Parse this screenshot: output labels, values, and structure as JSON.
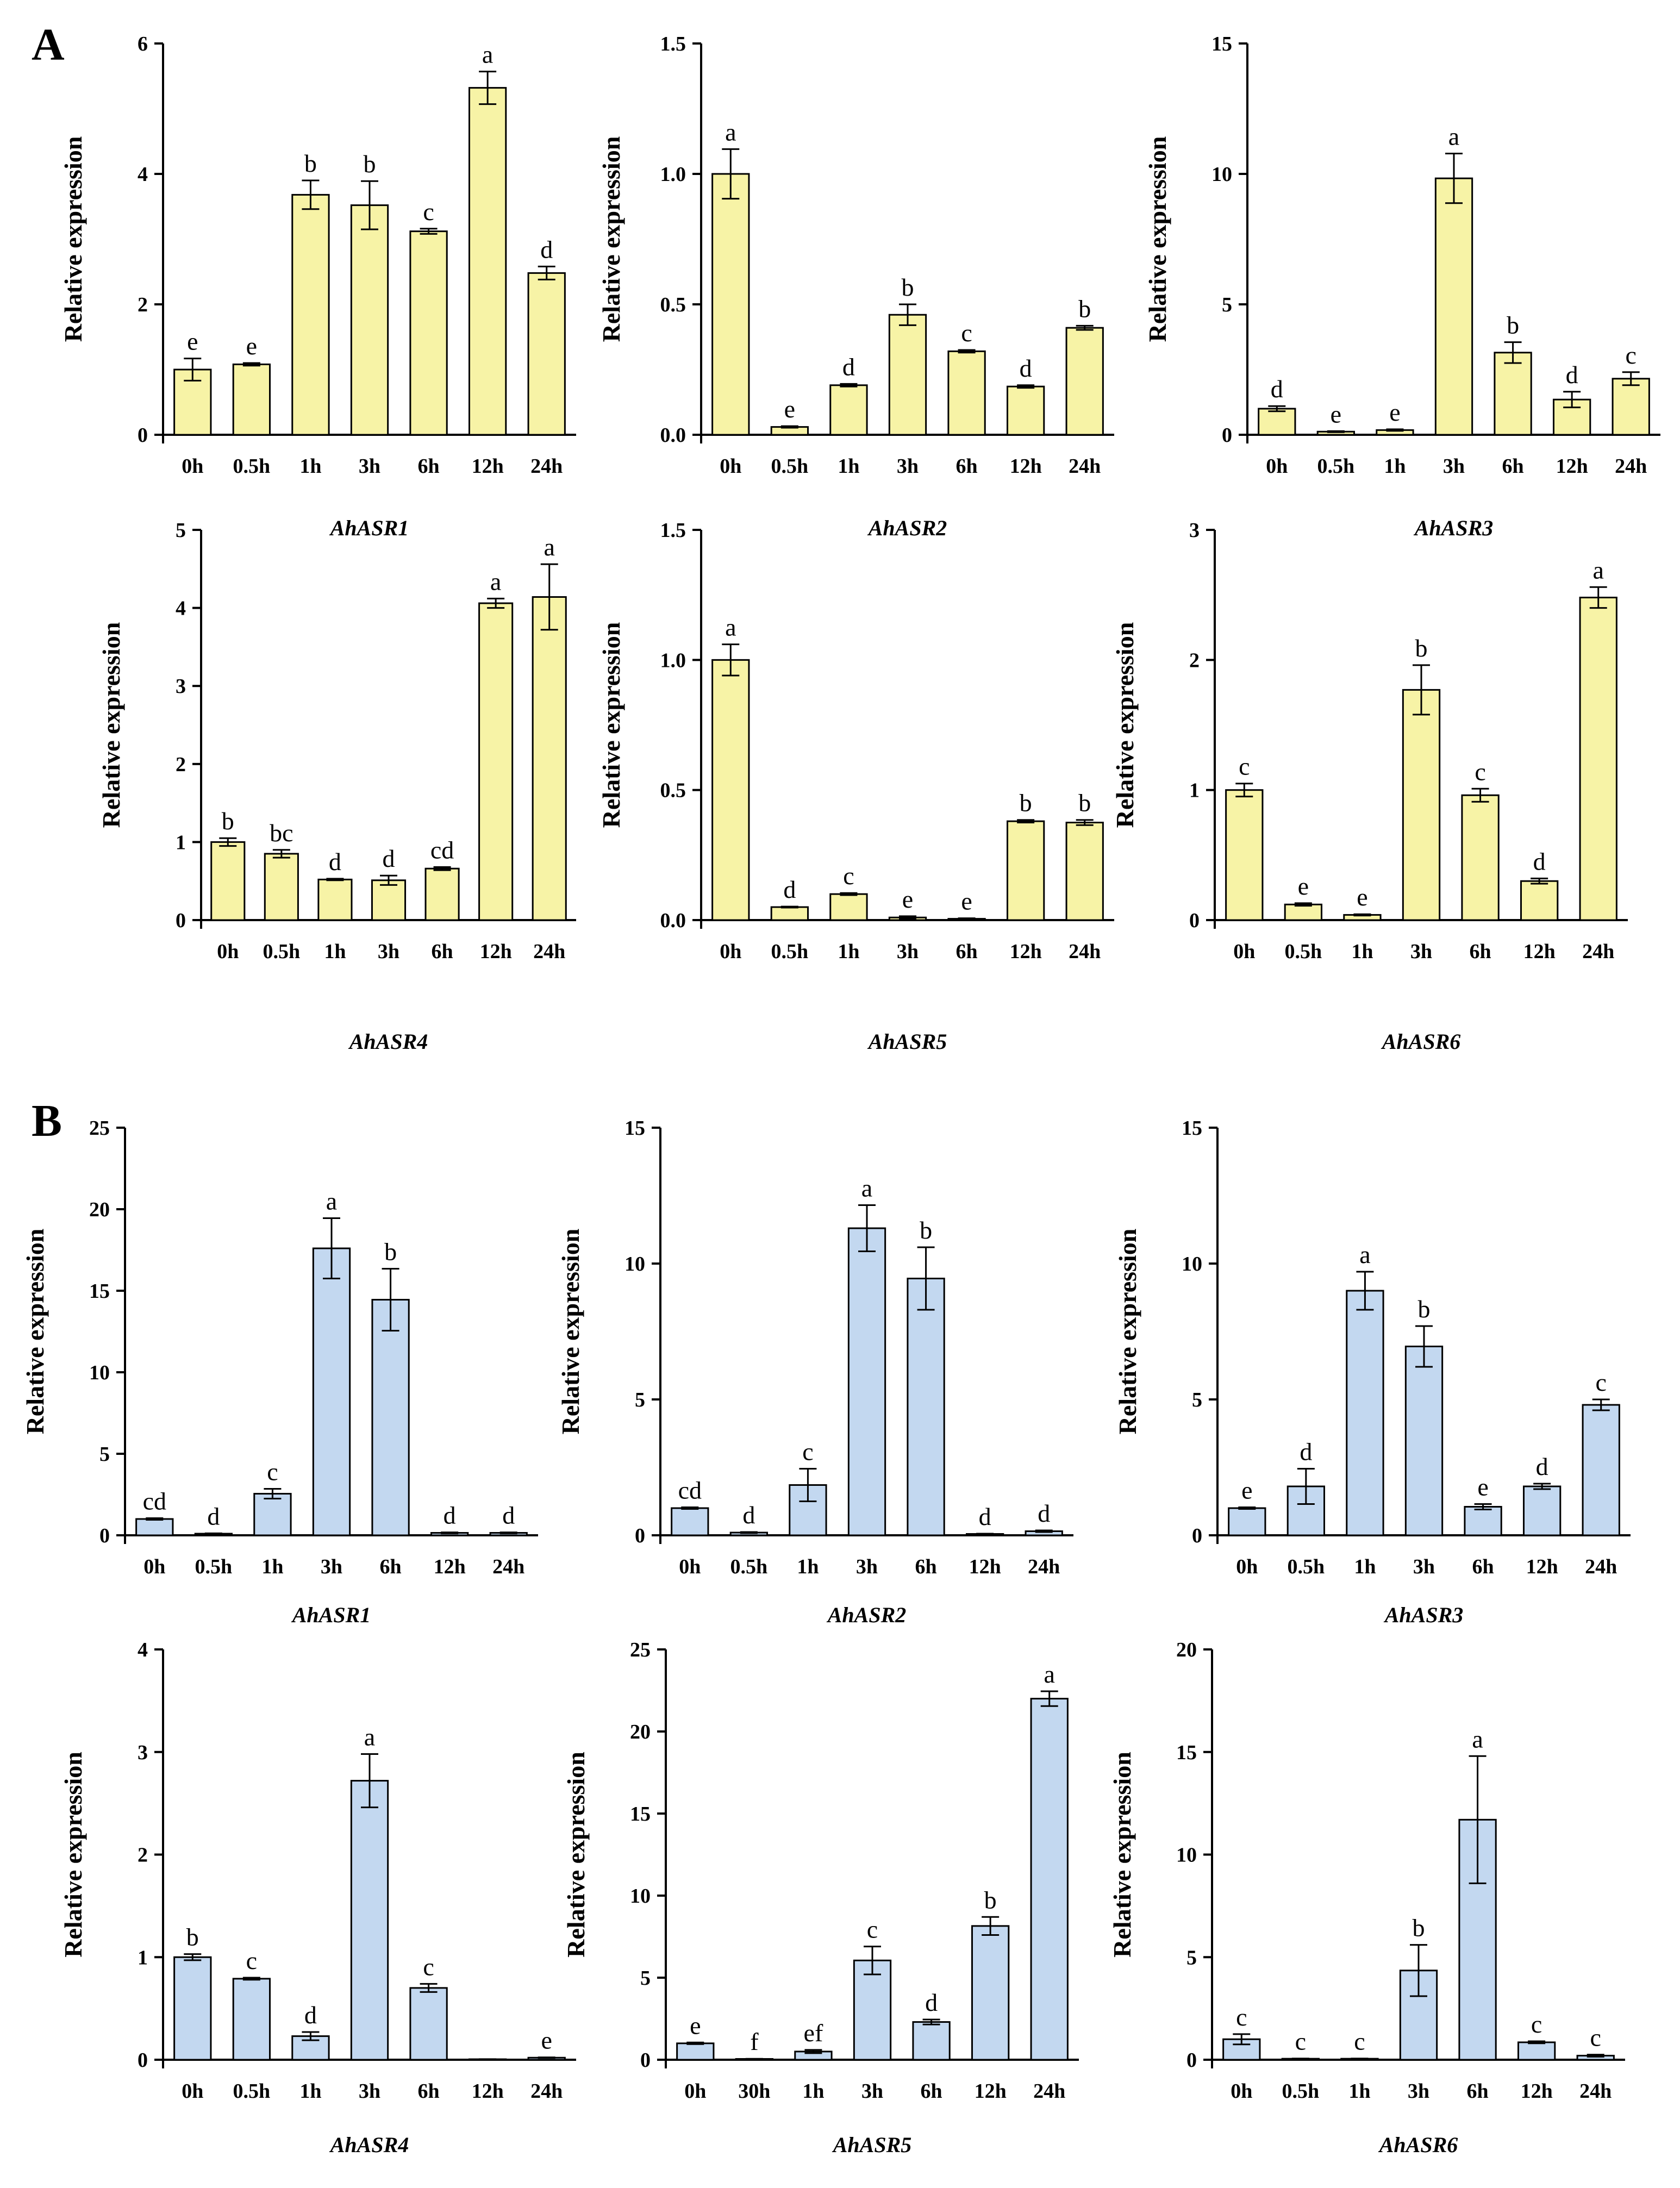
{
  "panel_labels": [
    "A",
    "B"
  ],
  "colors": {
    "groupA_fill": "#f7f3a6",
    "groupB_fill": "#c3d8f0",
    "stroke": "#000000"
  },
  "chart_data": [
    {
      "id": "A-AhASR1",
      "type": "bar",
      "group": "A",
      "title": "AhASR1",
      "ylabel": "Relative expression",
      "categories": [
        "0h",
        "0.5h",
        "1h",
        "3h",
        "6h",
        "12h",
        "24h"
      ],
      "values": [
        1.0,
        1.08,
        3.68,
        3.52,
        3.12,
        5.32,
        2.48
      ],
      "errors": [
        0.17,
        0.02,
        0.22,
        0.37,
        0.04,
        0.25,
        0.1
      ],
      "letters": [
        "e",
        "e",
        "b",
        "b",
        "c",
        "a",
        "d"
      ],
      "ylim": [
        0,
        6
      ],
      "yticks": [
        "0",
        "2",
        "4",
        "6"
      ]
    },
    {
      "id": "A-AhASR2",
      "type": "bar",
      "group": "A",
      "title": "AhASR2",
      "ylabel": "Relative expression",
      "categories": [
        "0h",
        "0.5h",
        "1h",
        "3h",
        "6h",
        "12h",
        "24h"
      ],
      "values": [
        1.0,
        0.03,
        0.19,
        0.46,
        0.32,
        0.185,
        0.41
      ],
      "errors": [
        0.095,
        0.003,
        0.005,
        0.04,
        0.005,
        0.005,
        0.008
      ],
      "letters": [
        "a",
        "e",
        "d",
        "b",
        "c",
        "d",
        "b"
      ],
      "ylim": [
        0,
        1.5
      ],
      "yticks": [
        "0.0",
        "0.5",
        "1.0",
        "1.5"
      ]
    },
    {
      "id": "A-AhASR3",
      "type": "bar",
      "group": "A",
      "title": "AhASR3",
      "ylabel": "Relative expression",
      "categories": [
        "0h",
        "0.5h",
        "1h",
        "3h",
        "6h",
        "12h",
        "24h"
      ],
      "values": [
        1.0,
        0.12,
        0.18,
        9.83,
        3.15,
        1.35,
        2.15
      ],
      "errors": [
        0.1,
        0.02,
        0.03,
        0.95,
        0.4,
        0.3,
        0.25
      ],
      "letters": [
        "d",
        "e",
        "e",
        "a",
        "b",
        "d",
        "c"
      ],
      "ylim": [
        0,
        15
      ],
      "yticks": [
        "0",
        "5",
        "10",
        "15"
      ]
    },
    {
      "id": "A-AhASR4",
      "type": "bar",
      "group": "A",
      "title": "AhASR4",
      "ylabel": "Relative expression",
      "categories": [
        "0h",
        "0.5h",
        "1h",
        "3h",
        "6h",
        "12h",
        "24h"
      ],
      "values": [
        1.0,
        0.85,
        0.52,
        0.51,
        0.66,
        4.06,
        4.14
      ],
      "errors": [
        0.05,
        0.05,
        0.01,
        0.06,
        0.02,
        0.06,
        0.42
      ],
      "letters": [
        "b",
        "bc",
        "d",
        "d",
        "cd",
        "a",
        "a"
      ],
      "ylim": [
        0,
        5
      ],
      "yticks": [
        "0",
        "1",
        "2",
        "3",
        "4",
        "5"
      ]
    },
    {
      "id": "A-AhASR5",
      "type": "bar",
      "group": "A",
      "title": "AhASR5",
      "ylabel": "Relative expression",
      "categories": [
        "0h",
        "0.5h",
        "1h",
        "3h",
        "6h",
        "12h",
        "24h"
      ],
      "values": [
        1.0,
        0.05,
        0.1,
        0.01,
        0.005,
        0.38,
        0.375
      ],
      "errors": [
        0.06,
        0.002,
        0.004,
        0.005,
        0.002,
        0.005,
        0.01
      ],
      "letters": [
        "a",
        "d",
        "c",
        "e",
        "e",
        "b",
        "b"
      ],
      "ylim": [
        0,
        1.5
      ],
      "yticks": [
        "0.0",
        "0.5",
        "1.0",
        "1.5"
      ]
    },
    {
      "id": "A-AhASR6",
      "type": "bar",
      "group": "A",
      "title": "AhASR6",
      "ylabel": "Relative expression",
      "categories": [
        "0h",
        "0.5h",
        "1h",
        "3h",
        "6h",
        "12h",
        "24h"
      ],
      "values": [
        1.0,
        0.12,
        0.04,
        1.77,
        0.96,
        0.3,
        2.48
      ],
      "errors": [
        0.05,
        0.01,
        0.005,
        0.19,
        0.05,
        0.02,
        0.08
      ],
      "letters": [
        "c",
        "e",
        "e",
        "b",
        "c",
        "d",
        "a"
      ],
      "ylim": [
        0,
        3
      ],
      "yticks": [
        "0",
        "1",
        "2",
        "3"
      ]
    },
    {
      "id": "B-AhASR1",
      "type": "bar",
      "group": "B",
      "title": "AhASR1",
      "ylabel": "Relative expression",
      "categories": [
        "0h",
        "0.5h",
        "1h",
        "3h",
        "6h",
        "12h",
        "24h"
      ],
      "values": [
        1.0,
        0.1,
        2.55,
        17.6,
        14.45,
        0.15,
        0.15
      ],
      "errors": [
        0.05,
        0.02,
        0.3,
        1.85,
        1.9,
        0.03,
        0.03
      ],
      "letters": [
        "cd",
        "d",
        "c",
        "a",
        "b",
        "d",
        "d"
      ],
      "ylim": [
        0,
        25
      ],
      "yticks": [
        "0",
        "5",
        "10",
        "15",
        "20",
        "25"
      ]
    },
    {
      "id": "B-AhASR2",
      "type": "bar",
      "group": "B",
      "title": "AhASR2",
      "ylabel": "Relative expression",
      "categories": [
        "0h",
        "0.5h",
        "1h",
        "3h",
        "6h",
        "12h",
        "24h"
      ],
      "values": [
        1.0,
        0.1,
        1.85,
        11.3,
        9.45,
        0.05,
        0.15
      ],
      "errors": [
        0.03,
        0.02,
        0.6,
        0.85,
        1.15,
        0.01,
        0.03
      ],
      "letters": [
        "cd",
        "d",
        "c",
        "a",
        "b",
        "d",
        "d"
      ],
      "ylim": [
        0,
        15
      ],
      "yticks": [
        "0",
        "5",
        "10",
        "15"
      ]
    },
    {
      "id": "B-AhASR3",
      "type": "bar",
      "group": "B",
      "title": "AhASR3",
      "ylabel": "Relative expression",
      "categories": [
        "0h",
        "0.5h",
        "1h",
        "3h",
        "6h",
        "12h",
        "24h"
      ],
      "values": [
        1.0,
        1.8,
        9.0,
        6.95,
        1.05,
        1.8,
        4.8
      ],
      "errors": [
        0.03,
        0.65,
        0.7,
        0.75,
        0.1,
        0.1,
        0.2
      ],
      "letters": [
        "e",
        "d",
        "a",
        "b",
        "e",
        "d",
        "c"
      ],
      "ylim": [
        0,
        15
      ],
      "yticks": [
        "0",
        "5",
        "10",
        "15"
      ]
    },
    {
      "id": "B-AhASR4",
      "type": "bar",
      "group": "B",
      "title": "AhASR4",
      "ylabel": "Relative expression",
      "categories": [
        "0h",
        "0.5h",
        "1h",
        "3h",
        "6h",
        "12h",
        "24h"
      ],
      "values": [
        1.0,
        0.79,
        0.23,
        2.72,
        0.7,
        0.005,
        0.02
      ],
      "errors": [
        0.03,
        0.01,
        0.04,
        0.26,
        0.04,
        0.001,
        0.003
      ],
      "letters": [
        "b",
        "c",
        "d",
        "a",
        "c",
        "",
        "e"
      ],
      "ylim": [
        0,
        4
      ],
      "yticks": [
        "0",
        "1",
        "2",
        "3",
        "4"
      ]
    },
    {
      "id": "B-AhASR5",
      "type": "bar",
      "group": "B",
      "title": "AhASR5",
      "ylabel": "Relative expression",
      "categories": [
        "0h",
        "30h",
        "1h",
        "3h",
        "6h",
        "12h",
        "24h"
      ],
      "values": [
        1.0,
        0.05,
        0.5,
        6.05,
        2.3,
        8.15,
        22.0
      ],
      "errors": [
        0.05,
        0.01,
        0.1,
        0.85,
        0.15,
        0.55,
        0.45
      ],
      "letters": [
        "e",
        "f",
        "ef",
        "c",
        "d",
        "b",
        "a"
      ],
      "ylim": [
        0,
        25
      ],
      "yticks": [
        "0",
        "5",
        "10",
        "15",
        "20",
        "25"
      ]
    },
    {
      "id": "B-AhASR6",
      "type": "bar",
      "group": "B",
      "title": "AhASR6",
      "ylabel": "Relative expression",
      "categories": [
        "0h",
        "0.5h",
        "1h",
        "3h",
        "6h",
        "12h",
        "24h"
      ],
      "values": [
        1.0,
        0.05,
        0.05,
        4.35,
        11.7,
        0.85,
        0.2
      ],
      "errors": [
        0.25,
        0.01,
        0.01,
        1.25,
        3.1,
        0.05,
        0.05
      ],
      "letters": [
        "c",
        "c",
        "c",
        "b",
        "a",
        "c",
        "c"
      ],
      "ylim": [
        0,
        20
      ],
      "yticks": [
        "0",
        "5",
        "10",
        "15",
        "20"
      ]
    }
  ]
}
